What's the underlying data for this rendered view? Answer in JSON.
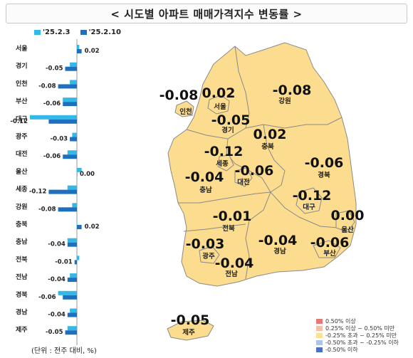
{
  "title": "< 시도별 아파트 매매가격지수 변동률 >",
  "legend": [
    {
      "label": "'25.2.3",
      "color": "#33b8e8"
    },
    {
      "label": "'25.2.10",
      "color": "#1f6fbf"
    }
  ],
  "unit_note": "(단위 : 전주 대비, %)",
  "map_legend": [
    {
      "label": "0.50% 이상",
      "color": "#e8777a"
    },
    {
      "label": "0.25% 이상 ~ 0.50% 미만",
      "color": "#f4bfa5"
    },
    {
      "label": "-0.25% 초과 ~ 0.25% 미만",
      "color": "#fbe09a"
    },
    {
      "label": "-0.50% 초과 ~ -0.25% 이하",
      "color": "#aec4e4"
    },
    {
      "label": "-0.50% 이하",
      "color": "#4a72c4"
    }
  ],
  "colors": {
    "map_fill": "#fcdc8e",
    "map_stroke": "#8a8a8a",
    "bar_prev": "#33b8e8",
    "bar_curr": "#1f6fbf"
  },
  "chart_data": {
    "type": "bar",
    "orientation": "horizontal",
    "categories": [
      "서울",
      "경기",
      "인천",
      "부산",
      "대구",
      "광주",
      "대전",
      "울산",
      "세종",
      "강원",
      "충북",
      "충남",
      "전북",
      "전남",
      "경북",
      "경남",
      "제주"
    ],
    "series": [
      {
        "name": "'25.2.3",
        "values": [
          0.01,
          -0.03,
          -0.03,
          -0.06,
          -0.2,
          -0.02,
          -0.04,
          0.02,
          -0.04,
          -0.02,
          0.0,
          -0.04,
          0.01,
          -0.03,
          -0.08,
          -0.03,
          -0.04
        ]
      },
      {
        "name": "'25.2.10",
        "values": [
          0.02,
          -0.05,
          -0.08,
          -0.06,
          -0.12,
          -0.03,
          -0.06,
          0.0,
          -0.12,
          -0.08,
          0.02,
          -0.04,
          -0.01,
          -0.04,
          -0.06,
          -0.04,
          -0.05
        ]
      }
    ],
    "value_labels": [
      "0.02",
      "-0.05",
      "-0.08",
      "-0.06",
      "-0.12",
      "-0.03",
      "-0.06",
      "0.00",
      "-0.12",
      "-0.08",
      "0.02",
      "-0.04",
      "-0.01",
      "-0.04",
      "-0.06",
      "-0.04",
      "-0.05"
    ]
  },
  "map_labels": [
    {
      "region": "인천",
      "value": "-0.08"
    },
    {
      "region": "서울",
      "value": "0.02"
    },
    {
      "region": "강원",
      "value": "-0.08"
    },
    {
      "region": "경기",
      "value": "-0.05"
    },
    {
      "region": "충북",
      "value": "0.02"
    },
    {
      "region": "세종",
      "value": "-0.12"
    },
    {
      "region": "대전",
      "value": "-0.06"
    },
    {
      "region": "충남",
      "value": "-0.04"
    },
    {
      "region": "경북",
      "value": "-0.06"
    },
    {
      "region": "대구",
      "value": "-0.12"
    },
    {
      "region": "울산",
      "value": "0.00"
    },
    {
      "region": "전북",
      "value": "-0.01"
    },
    {
      "region": "광주",
      "value": "-0.03"
    },
    {
      "region": "경남",
      "value": "-0.04"
    },
    {
      "region": "부산",
      "value": "-0.06"
    },
    {
      "region": "전남",
      "value": "-0.04"
    },
    {
      "region": "제주",
      "value": "-0.05"
    }
  ]
}
